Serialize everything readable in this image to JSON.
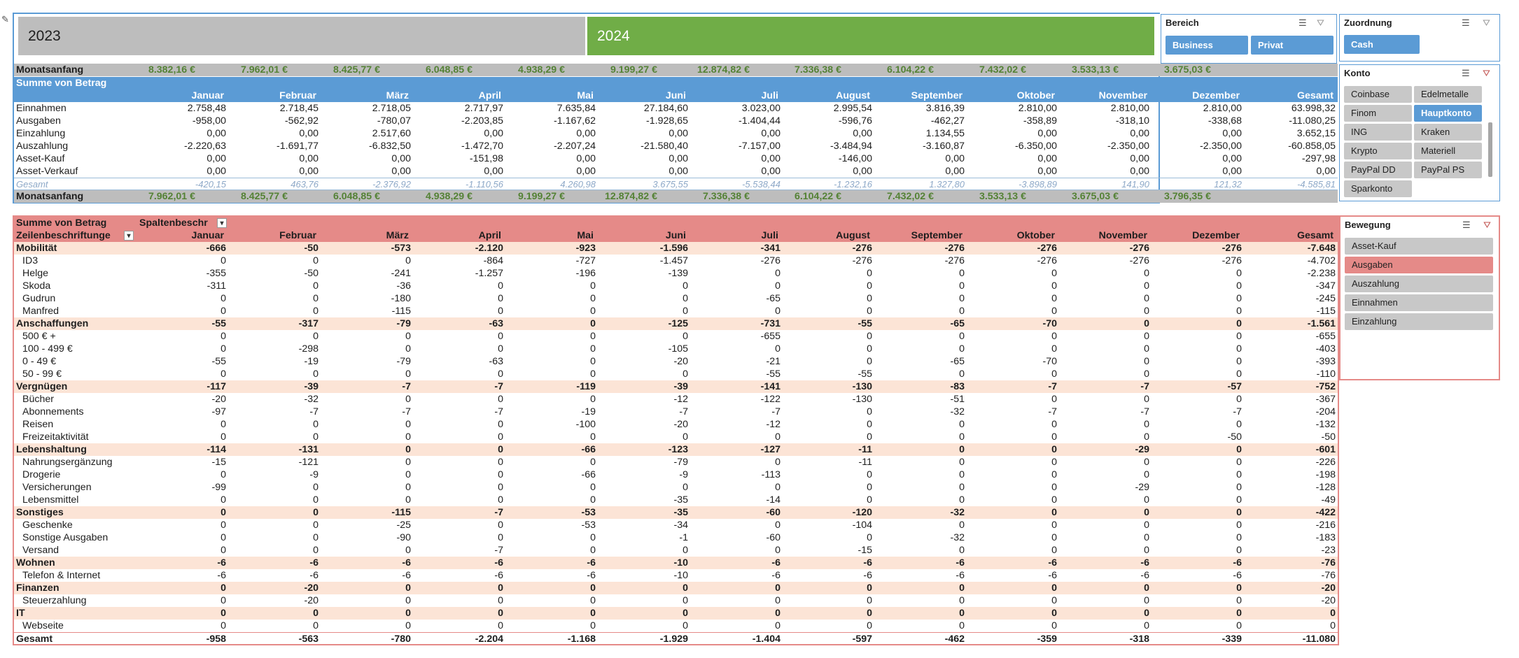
{
  "years": {
    "y2023": "2023",
    "y2024": "2024"
  },
  "colors": {
    "green": "#70ad47",
    "blue": "#5b9bd5",
    "salmon": "#e58a88",
    "peach": "#fce4d6"
  },
  "months": [
    "Januar",
    "Februar",
    "März",
    "April",
    "Mai",
    "Juni",
    "Juli",
    "August",
    "September",
    "Oktober",
    "November",
    "Dezember",
    "Gesamt"
  ],
  "top": {
    "monatsanfang_label": "Monatsanfang",
    "start_values": [
      "8.382,16 €",
      "7.962,01 €",
      "8.425,77 €",
      "6.048,85 €",
      "4.938,29 €",
      "9.199,27 €",
      "12.874,82 €",
      "7.336,38 €",
      "6.104,22 €",
      "7.432,02 €",
      "3.533,13 €",
      "3.675,03 €"
    ],
    "header": "Summe von Betrag",
    "rows": [
      {
        "label": "Einnahmen",
        "v": [
          "2.758,48",
          "2.718,45",
          "2.718,05",
          "2.717,97",
          "7.635,84",
          "27.184,60",
          "3.023,00",
          "2.995,54",
          "3.816,39",
          "2.810,00",
          "2.810,00",
          "2.810,00",
          "63.998,32"
        ]
      },
      {
        "label": "Ausgaben",
        "v": [
          "-958,00",
          "-562,92",
          "-780,07",
          "-2.203,85",
          "-1.167,62",
          "-1.928,65",
          "-1.404,44",
          "-596,76",
          "-462,27",
          "-358,89",
          "-318,10",
          "-338,68",
          "-11.080,25"
        ]
      },
      {
        "label": "Einzahlung",
        "v": [
          "0,00",
          "0,00",
          "2.517,60",
          "0,00",
          "0,00",
          "0,00",
          "0,00",
          "0,00",
          "1.134,55",
          "0,00",
          "0,00",
          "0,00",
          "3.652,15"
        ]
      },
      {
        "label": "Auszahlung",
        "v": [
          "-2.220,63",
          "-1.691,77",
          "-6.832,50",
          "-1.472,70",
          "-2.207,24",
          "-21.580,40",
          "-7.157,00",
          "-3.484,94",
          "-3.160,87",
          "-6.350,00",
          "-2.350,00",
          "-2.350,00",
          "-60.858,05"
        ]
      },
      {
        "label": "Asset-Kauf",
        "v": [
          "0,00",
          "0,00",
          "0,00",
          "-151,98",
          "0,00",
          "0,00",
          "0,00",
          "-146,00",
          "0,00",
          "0,00",
          "0,00",
          "0,00",
          "-297,98"
        ]
      },
      {
        "label": "Asset-Verkauf",
        "v": [
          "0,00",
          "0,00",
          "0,00",
          "0,00",
          "0,00",
          "0,00",
          "0,00",
          "0,00",
          "0,00",
          "0,00",
          "0,00",
          "0,00",
          "0,00"
        ]
      }
    ],
    "gesamt_label": "Gesamt",
    "gesamt": [
      "-420,15",
      "463,76",
      "-2.376,92",
      "-1.110,56",
      "4.260,98",
      "3.675,55",
      "-5.538,44",
      "-1.232,16",
      "1.327,80",
      "-3.898,89",
      "141,90",
      "121,32",
      "-4.585,81"
    ],
    "end_values": [
      "7.962,01 €",
      "8.425,77 €",
      "6.048,85 €",
      "4.938,29 €",
      "9.199,27 €",
      "12.874,82 €",
      "7.336,38 €",
      "6.104,22 €",
      "7.432,02 €",
      "3.533,13 €",
      "3.675,03 €",
      "3.796,35 €"
    ]
  },
  "bottom": {
    "header": "Summe von Betrag",
    "col_label": "Spaltenbeschr",
    "row_label": "Zeilenbeschriftunge",
    "rows": [
      {
        "label": "Mobilität",
        "g": true,
        "v": [
          "-666",
          "-50",
          "-573",
          "-2.120",
          "-923",
          "-1.596",
          "-341",
          "-276",
          "-276",
          "-276",
          "-276",
          "-276",
          "-7.648"
        ]
      },
      {
        "label": "ID3",
        "v": [
          "0",
          "0",
          "0",
          "-864",
          "-727",
          "-1.457",
          "-276",
          "-276",
          "-276",
          "-276",
          "-276",
          "-276",
          "-4.702"
        ]
      },
      {
        "label": "Helge",
        "v": [
          "-355",
          "-50",
          "-241",
          "-1.257",
          "-196",
          "-139",
          "0",
          "0",
          "0",
          "0",
          "0",
          "0",
          "-2.238"
        ]
      },
      {
        "label": "Skoda",
        "v": [
          "-311",
          "0",
          "-36",
          "0",
          "0",
          "0",
          "0",
          "0",
          "0",
          "0",
          "0",
          "0",
          "-347"
        ]
      },
      {
        "label": "Gudrun",
        "v": [
          "0",
          "0",
          "-180",
          "0",
          "0",
          "0",
          "-65",
          "0",
          "0",
          "0",
          "0",
          "0",
          "-245"
        ]
      },
      {
        "label": "Manfred",
        "v": [
          "0",
          "0",
          "-115",
          "0",
          "0",
          "0",
          "0",
          "0",
          "0",
          "0",
          "0",
          "0",
          "-115"
        ]
      },
      {
        "label": "Anschaffungen",
        "g": true,
        "v": [
          "-55",
          "-317",
          "-79",
          "-63",
          "0",
          "-125",
          "-731",
          "-55",
          "-65",
          "-70",
          "0",
          "0",
          "-1.561"
        ]
      },
      {
        "label": "500 € +",
        "v": [
          "0",
          "0",
          "0",
          "0",
          "0",
          "0",
          "-655",
          "0",
          "0",
          "0",
          "0",
          "0",
          "-655"
        ]
      },
      {
        "label": "100 - 499 €",
        "v": [
          "0",
          "-298",
          "0",
          "0",
          "0",
          "-105",
          "0",
          "0",
          "0",
          "0",
          "0",
          "0",
          "-403"
        ]
      },
      {
        "label": "0 - 49 €",
        "v": [
          "-55",
          "-19",
          "-79",
          "-63",
          "0",
          "-20",
          "-21",
          "0",
          "-65",
          "-70",
          "0",
          "0",
          "-393"
        ]
      },
      {
        "label": "50 - 99 €",
        "v": [
          "0",
          "0",
          "0",
          "0",
          "0",
          "0",
          "-55",
          "-55",
          "0",
          "0",
          "0",
          "0",
          "-110"
        ]
      },
      {
        "label": "Vergnügen",
        "g": true,
        "v": [
          "-117",
          "-39",
          "-7",
          "-7",
          "-119",
          "-39",
          "-141",
          "-130",
          "-83",
          "-7",
          "-7",
          "-57",
          "-752"
        ]
      },
      {
        "label": "Bücher",
        "v": [
          "-20",
          "-32",
          "0",
          "0",
          "0",
          "-12",
          "-122",
          "-130",
          "-51",
          "0",
          "0",
          "0",
          "-367"
        ]
      },
      {
        "label": "Abonnements",
        "v": [
          "-97",
          "-7",
          "-7",
          "-7",
          "-19",
          "-7",
          "-7",
          "0",
          "-32",
          "-7",
          "-7",
          "-7",
          "-204"
        ]
      },
      {
        "label": "Reisen",
        "v": [
          "0",
          "0",
          "0",
          "0",
          "-100",
          "-20",
          "-12",
          "0",
          "0",
          "0",
          "0",
          "0",
          "-132"
        ]
      },
      {
        "label": "Freizeitaktivität",
        "v": [
          "0",
          "0",
          "0",
          "0",
          "0",
          "0",
          "0",
          "0",
          "0",
          "0",
          "0",
          "-50",
          "-50"
        ]
      },
      {
        "label": "Lebenshaltung",
        "g": true,
        "v": [
          "-114",
          "-131",
          "0",
          "0",
          "-66",
          "-123",
          "-127",
          "-11",
          "0",
          "0",
          "-29",
          "0",
          "-601"
        ]
      },
      {
        "label": "Nahrungsergänzung",
        "v": [
          "-15",
          "-121",
          "0",
          "0",
          "0",
          "-79",
          "0",
          "-11",
          "0",
          "0",
          "0",
          "0",
          "-226"
        ]
      },
      {
        "label": "Drogerie",
        "v": [
          "0",
          "-9",
          "0",
          "0",
          "-66",
          "-9",
          "-113",
          "0",
          "0",
          "0",
          "0",
          "0",
          "-198"
        ]
      },
      {
        "label": "Versicherungen",
        "v": [
          "-99",
          "0",
          "0",
          "0",
          "0",
          "0",
          "0",
          "0",
          "0",
          "0",
          "-29",
          "0",
          "-128"
        ]
      },
      {
        "label": "Lebensmittel",
        "v": [
          "0",
          "0",
          "0",
          "0",
          "0",
          "-35",
          "-14",
          "0",
          "0",
          "0",
          "0",
          "0",
          "-49"
        ]
      },
      {
        "label": "Sonstiges",
        "g": true,
        "v": [
          "0",
          "0",
          "-115",
          "-7",
          "-53",
          "-35",
          "-60",
          "-120",
          "-32",
          "0",
          "0",
          "0",
          "-422"
        ]
      },
      {
        "label": "Geschenke",
        "v": [
          "0",
          "0",
          "-25",
          "0",
          "-53",
          "-34",
          "0",
          "-104",
          "0",
          "0",
          "0",
          "0",
          "-216"
        ]
      },
      {
        "label": "Sonstige Ausgaben",
        "v": [
          "0",
          "0",
          "-90",
          "0",
          "0",
          "-1",
          "-60",
          "0",
          "-32",
          "0",
          "0",
          "0",
          "-183"
        ]
      },
      {
        "label": "Versand",
        "v": [
          "0",
          "0",
          "0",
          "-7",
          "0",
          "0",
          "0",
          "-15",
          "0",
          "0",
          "0",
          "0",
          "-23"
        ]
      },
      {
        "label": "Wohnen",
        "g": true,
        "v": [
          "-6",
          "-6",
          "-6",
          "-6",
          "-6",
          "-10",
          "-6",
          "-6",
          "-6",
          "-6",
          "-6",
          "-6",
          "-76"
        ]
      },
      {
        "label": "Telefon & Internet",
        "v": [
          "-6",
          "-6",
          "-6",
          "-6",
          "-6",
          "-10",
          "-6",
          "-6",
          "-6",
          "-6",
          "-6",
          "-6",
          "-76"
        ]
      },
      {
        "label": "Finanzen",
        "g": true,
        "v": [
          "0",
          "-20",
          "0",
          "0",
          "0",
          "0",
          "0",
          "0",
          "0",
          "0",
          "0",
          "0",
          "-20"
        ]
      },
      {
        "label": "Steuerzahlung",
        "v": [
          "0",
          "-20",
          "0",
          "0",
          "0",
          "0",
          "0",
          "0",
          "0",
          "0",
          "0",
          "0",
          "-20"
        ]
      },
      {
        "label": "IT",
        "g": true,
        "v": [
          "0",
          "0",
          "0",
          "0",
          "0",
          "0",
          "0",
          "0",
          "0",
          "0",
          "0",
          "0",
          "0"
        ]
      },
      {
        "label": "Webseite",
        "v": [
          "0",
          "0",
          "0",
          "0",
          "0",
          "0",
          "0",
          "0",
          "0",
          "0",
          "0",
          "0",
          "0"
        ]
      }
    ],
    "total_label": "Gesamt",
    "total": [
      "-958",
      "-563",
      "-780",
      "-2.204",
      "-1.168",
      "-1.929",
      "-1.404",
      "-597",
      "-462",
      "-359",
      "-318",
      "-339",
      "-11.080"
    ]
  },
  "slicers": {
    "bereich": {
      "title": "Bereich",
      "items": [
        "Business",
        "Privat"
      ]
    },
    "zuordnung": {
      "title": "Zuordnung",
      "items": [
        "Cash"
      ]
    },
    "konto": {
      "title": "Konto",
      "items": [
        "Coinbase",
        "Edelmetalle",
        "Finom",
        "Hauptkonto",
        "ING",
        "Kraken",
        "Krypto",
        "Materiell",
        "PayPal DD",
        "PayPal PS",
        "Sparkonto"
      ],
      "selected": "Hauptkonto"
    },
    "bewegung": {
      "title": "Bewegung",
      "items": [
        "Asset-Kauf",
        "Ausgaben",
        "Auszahlung",
        "Einnahmen",
        "Einzahlung"
      ],
      "selected": "Ausgaben"
    }
  }
}
